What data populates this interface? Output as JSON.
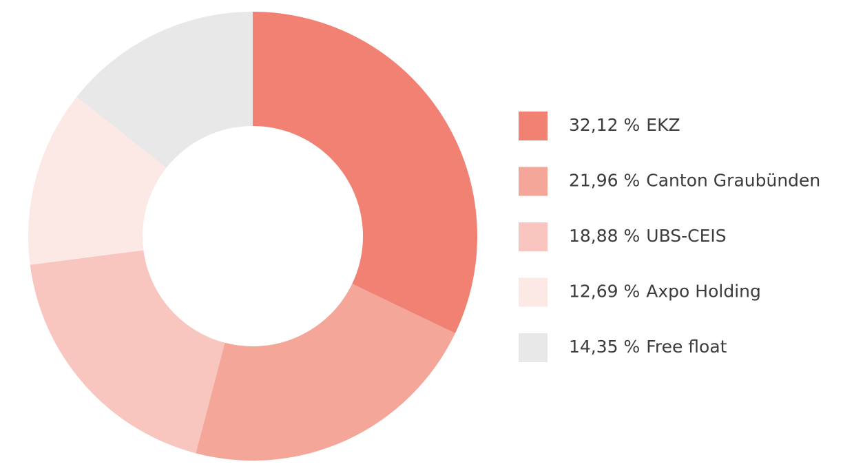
{
  "chart_data": {
    "type": "donut",
    "categories": [
      "EKZ",
      "Canton Graubünden",
      "UBS-CEIS",
      "Axpo Holding",
      "Free float"
    ],
    "values": [
      32.12,
      21.96,
      18.88,
      12.69,
      14.35
    ],
    "value_labels": [
      "32,12 %",
      "21,96 %",
      "18,88 %",
      "12,69 %",
      "14,35 %"
    ],
    "colors": [
      "#f08173",
      "#f4a699",
      "#f8c6bf",
      "#fce8e5",
      "#e8e8e8"
    ],
    "legend": "right"
  }
}
